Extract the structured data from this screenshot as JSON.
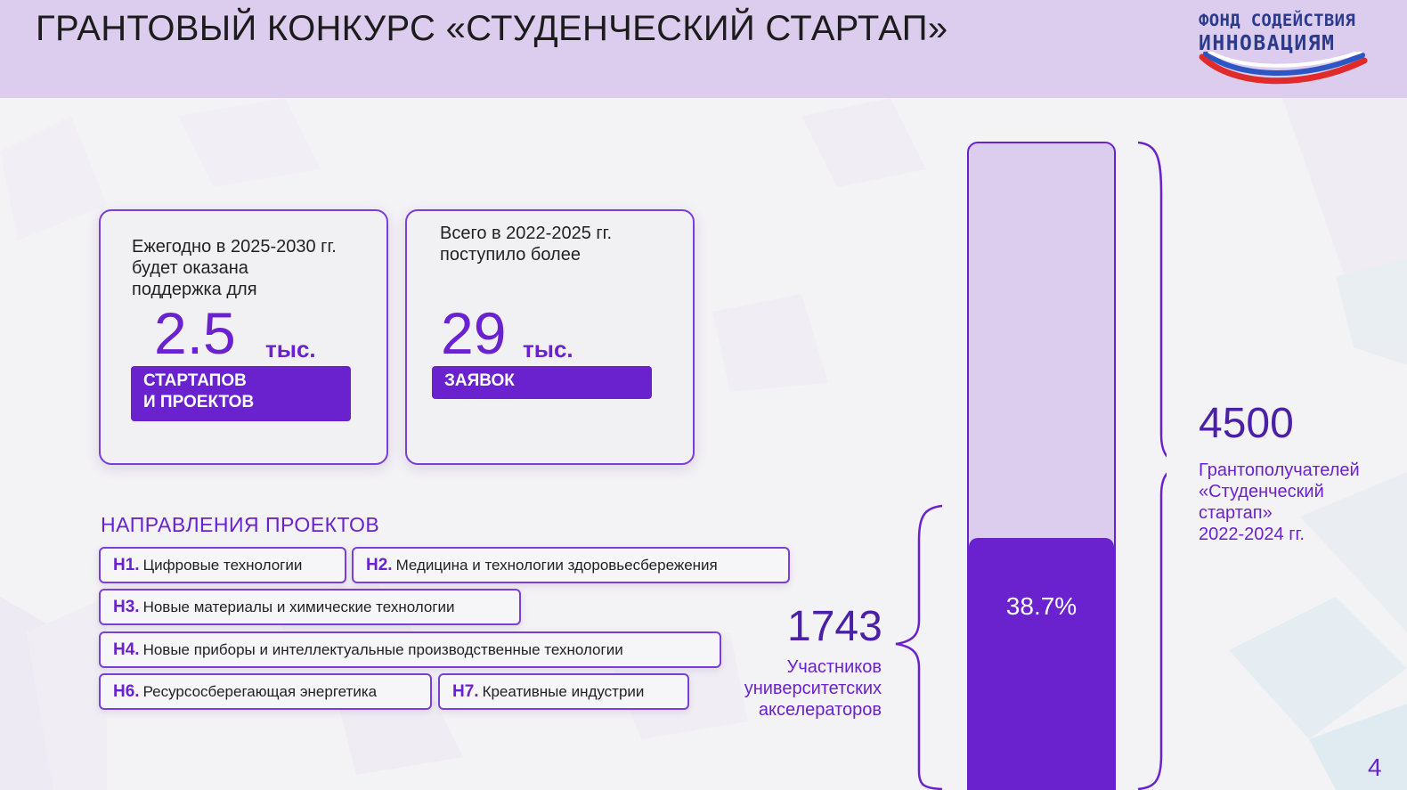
{
  "header": {
    "title": "ГРАНТОВЫЙ КОНКУРС «СТУДЕНЧЕСКИЙ СТАРТАП»",
    "logo_line1": "ФОНД СОДЕЙСТВИЯ",
    "logo_line2": "ИННОВАЦИЯМ"
  },
  "cards": [
    {
      "text": [
        "Ежегодно в 2025-2030 гг.",
        "будет оказана",
        "поддержка для"
      ],
      "number": "2.5",
      "unit": "тыс.",
      "tag": [
        "СТАРТАПОВ",
        "И ПРОЕКТОВ"
      ]
    },
    {
      "text": [
        "Всего в 2022-2025 гг.",
        "поступило более"
      ],
      "number": "29",
      "unit": "тыс.",
      "tag": [
        "ЗАЯВОК"
      ]
    }
  ],
  "directions": {
    "title": "НАПРАВЛЕНИЯ ПРОЕКТОВ",
    "items": [
      {
        "code": "Н1.",
        "label": "Цифровые технологии"
      },
      {
        "code": "Н2.",
        "label": "Медицина и технологии здоровьесбережения"
      },
      {
        "code": "Н3.",
        "label": "Новые материалы и химические технологии"
      },
      {
        "code": "Н4.",
        "label": "Новые приборы и интеллектуальные производственные технологии"
      },
      {
        "code": "Н6.",
        "label": "Ресурсосберегающая энергетика"
      },
      {
        "code": "Н7.",
        "label": "Креативные индустрии"
      }
    ]
  },
  "stats": {
    "total": {
      "value": "4500",
      "label": [
        "Грантополучателей",
        "«Студенческий",
        "стартап»",
        "2022-2024 гг."
      ]
    },
    "part": {
      "value": "1743",
      "label": [
        "Участников",
        "университетских",
        "акселераторов"
      ]
    },
    "share_label": "38.7%",
    "share_fraction": 0.387
  },
  "colors": {
    "accent": "#6a22cf",
    "header_bg": "#dccdee",
    "bar_light": "#dccdee"
  },
  "page_number": "4"
}
